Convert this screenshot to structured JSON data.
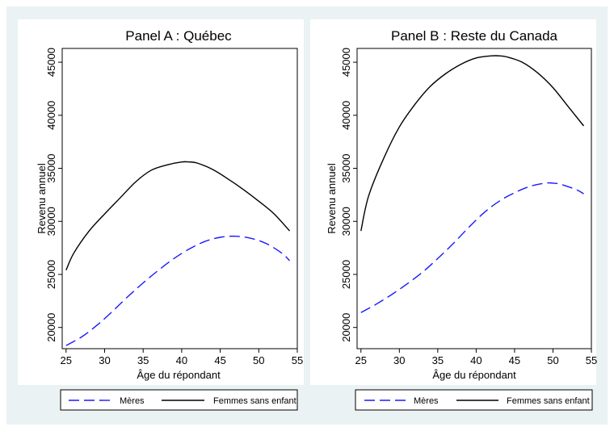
{
  "chart_data": [
    {
      "type": "line",
      "title": "Panel A : Québec",
      "xlabel": "Âge du répondant",
      "ylabel": "Revenu annuel",
      "xlim": [
        24.5,
        55
      ],
      "ylim": [
        18000,
        46300
      ],
      "xticks": [
        25,
        30,
        35,
        40,
        45,
        50,
        55
      ],
      "yticks": [
        20000,
        25000,
        30000,
        35000,
        40000,
        45000
      ],
      "grid": false,
      "legend_position": "bottom",
      "series": [
        {
          "name": "Mères",
          "style": "dashed",
          "color": "#1a1aff",
          "x": [
            25,
            27,
            29,
            31,
            33,
            35,
            37,
            39,
            41,
            43,
            45,
            47,
            49,
            51,
            53,
            54
          ],
          "y": [
            18300,
            19100,
            20200,
            21500,
            22900,
            24200,
            25400,
            26500,
            27400,
            28100,
            28500,
            28600,
            28400,
            27900,
            27000,
            26300
          ]
        },
        {
          "name": "Femmes sans enfant",
          "style": "solid",
          "color": "#000000",
          "x": [
            25,
            26,
            28,
            30,
            32,
            34,
            36,
            38,
            40,
            41,
            42,
            44,
            46,
            48,
            50,
            52,
            54
          ],
          "y": [
            25400,
            27000,
            29100,
            30700,
            32200,
            33700,
            34800,
            35300,
            35600,
            35600,
            35500,
            34900,
            34000,
            33000,
            31900,
            30700,
            29100
          ]
        }
      ]
    },
    {
      "type": "line",
      "title": "Panel B : Reste du Canada",
      "xlabel": "Âge du répondant",
      "ylabel": "Revenu annuel",
      "xlim": [
        24.5,
        55
      ],
      "ylim": [
        18000,
        46300
      ],
      "xticks": [
        25,
        30,
        35,
        40,
        45,
        50,
        55
      ],
      "yticks": [
        20000,
        25000,
        30000,
        35000,
        40000,
        45000
      ],
      "grid": false,
      "legend_position": "bottom",
      "series": [
        {
          "name": "Mères",
          "style": "dashed",
          "color": "#1a1aff",
          "x": [
            25,
            27,
            29,
            31,
            33,
            35,
            37,
            39,
            41,
            43,
            45,
            47,
            49,
            50,
            51,
            53,
            54
          ],
          "y": [
            21400,
            22200,
            23100,
            24100,
            25200,
            26500,
            27900,
            29400,
            30800,
            31900,
            32700,
            33300,
            33600,
            33600,
            33500,
            33000,
            32600
          ]
        },
        {
          "name": "Femmes sans enfant",
          "style": "solid",
          "color": "#000000",
          "x": [
            25,
            26,
            28,
            30,
            32,
            34,
            36,
            38,
            40,
            42,
            43,
            44,
            46,
            48,
            50,
            52,
            54
          ],
          "y": [
            29100,
            32400,
            36000,
            38900,
            41000,
            42700,
            43900,
            44800,
            45400,
            45600,
            45600,
            45500,
            45000,
            44000,
            42600,
            40800,
            39000
          ]
        }
      ]
    }
  ]
}
